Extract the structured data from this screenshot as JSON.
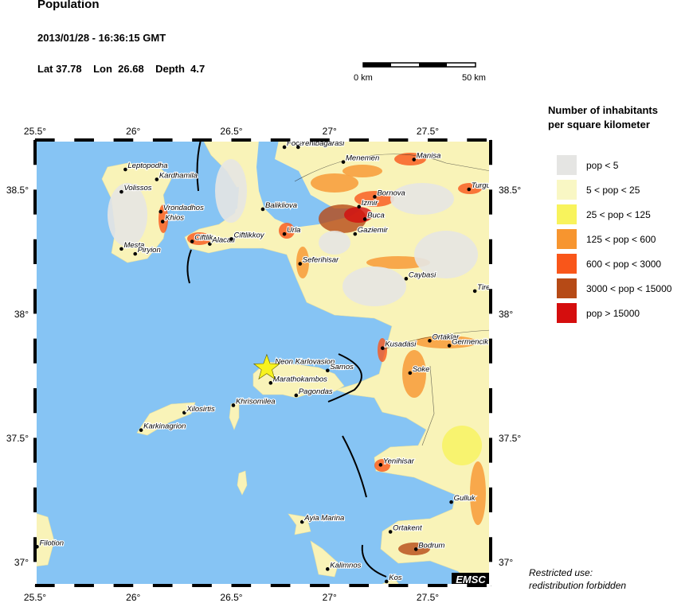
{
  "header": {
    "title": "Population",
    "datetime": "2013/01/28 - 16:36:15 GMT",
    "coords": "Lat 37.78    Lon  26.68    Depth  4.7"
  },
  "scale_bar": {
    "start_label": "0 km",
    "end_label": "50 km"
  },
  "map": {
    "lon_ticks": [
      "25.5°",
      "26°",
      "26.5°",
      "27°",
      "27.5°"
    ],
    "lat_ticks": [
      "38.5°",
      "38°",
      "37.5°",
      "37°"
    ],
    "epicenter": {
      "lat": 37.78,
      "lon": 26.68,
      "color": "#f7f21e"
    },
    "sea_color": "#86c4f4",
    "credit": "EMSC",
    "cities": [
      {
        "name": "Leptopodha",
        "lon": 25.96,
        "lat": 38.58
      },
      {
        "name": "Kardhamila",
        "lon": 26.12,
        "lat": 38.54
      },
      {
        "name": "Volissos",
        "lon": 25.94,
        "lat": 38.49
      },
      {
        "name": "Vrondadhos",
        "lon": 26.14,
        "lat": 38.41
      },
      {
        "name": "Khios",
        "lon": 26.15,
        "lat": 38.37
      },
      {
        "name": "Mesta",
        "lon": 25.94,
        "lat": 38.26
      },
      {
        "name": "Piryion",
        "lon": 26.01,
        "lat": 38.24
      },
      {
        "name": "Ciftlik",
        "lon": 26.3,
        "lat": 38.29
      },
      {
        "name": "Alacati",
        "lon": 26.39,
        "lat": 38.28
      },
      {
        "name": "Ciftlikkoy",
        "lon": 26.5,
        "lat": 38.3
      },
      {
        "name": "Balikliova",
        "lon": 26.66,
        "lat": 38.42
      },
      {
        "name": "Urla",
        "lon": 26.77,
        "lat": 38.32
      },
      {
        "name": "Foca",
        "lon": 26.77,
        "lat": 38.67
      },
      {
        "name": "Yenibagarasi",
        "lon": 26.84,
        "lat": 38.67
      },
      {
        "name": "Menemen",
        "lon": 27.07,
        "lat": 38.61
      },
      {
        "name": "Manisa",
        "lon": 27.43,
        "lat": 38.62
      },
      {
        "name": "Turgutlu",
        "lon": 27.71,
        "lat": 38.5
      },
      {
        "name": "Bornova",
        "lon": 27.23,
        "lat": 38.47
      },
      {
        "name": "Izmir",
        "lon": 27.15,
        "lat": 38.43
      },
      {
        "name": "Buca",
        "lon": 27.18,
        "lat": 38.38
      },
      {
        "name": "Gaziemir",
        "lon": 27.13,
        "lat": 38.32
      },
      {
        "name": "Seferihisar",
        "lon": 26.85,
        "lat": 38.2
      },
      {
        "name": "Caybasi",
        "lon": 27.39,
        "lat": 38.14
      },
      {
        "name": "Tire",
        "lon": 27.74,
        "lat": 38.09
      },
      {
        "name": "Kusadasi",
        "lon": 27.27,
        "lat": 37.86
      },
      {
        "name": "Ortaklar",
        "lon": 27.51,
        "lat": 37.89
      },
      {
        "name": "Germencik",
        "lon": 27.61,
        "lat": 37.87
      },
      {
        "name": "Soke",
        "lon": 27.41,
        "lat": 37.76
      },
      {
        "name": "Neon Karlovasion",
        "lon": 26.71,
        "lat": 37.79
      },
      {
        "name": "Samos",
        "lon": 26.99,
        "lat": 37.77
      },
      {
        "name": "Marathokambos",
        "lon": 26.7,
        "lat": 37.72
      },
      {
        "name": "Pagondas",
        "lon": 26.83,
        "lat": 37.67
      },
      {
        "name": "Khrisomilea",
        "lon": 26.51,
        "lat": 37.63
      },
      {
        "name": "Xilosirtis",
        "lon": 26.26,
        "lat": 37.6
      },
      {
        "name": "Karkinagrion",
        "lon": 26.04,
        "lat": 37.53
      },
      {
        "name": "Yenihisar",
        "lon": 27.26,
        "lat": 37.39
      },
      {
        "name": "Gulluk",
        "lon": 27.62,
        "lat": 37.24
      },
      {
        "name": "Ortakent",
        "lon": 27.31,
        "lat": 37.12
      },
      {
        "name": "Bodrum",
        "lon": 27.44,
        "lat": 37.05
      },
      {
        "name": "Ayia Marina",
        "lon": 26.86,
        "lat": 37.16
      },
      {
        "name": "Kalimnos",
        "lon": 26.99,
        "lat": 36.97
      },
      {
        "name": "Kos",
        "lon": 27.29,
        "lat": 36.92
      },
      {
        "name": "Filotion",
        "lon": 25.51,
        "lat": 37.06
      }
    ]
  },
  "legend": {
    "title_line1": "Number of inhabitants",
    "title_line2": "per square kilometer",
    "items": [
      {
        "label": "pop < 5",
        "color": "#e5e5e3"
      },
      {
        "label": "5 < pop < 25",
        "color": "#f9f7c4"
      },
      {
        "label": "25 < pop < 125",
        "color": "#f8f35c"
      },
      {
        "label": "125 < pop < 600",
        "color": "#f7952f"
      },
      {
        "label": "600 < pop < 3000",
        "color": "#f9561a"
      },
      {
        "label": "3000 < pop < 15000",
        "color": "#b64a16"
      },
      {
        "label": "pop > 15000",
        "color": "#d50e0e"
      }
    ]
  },
  "footer": {
    "restricted_line1": "Restricted use:",
    "restricted_line2": "redistribution forbidden"
  }
}
